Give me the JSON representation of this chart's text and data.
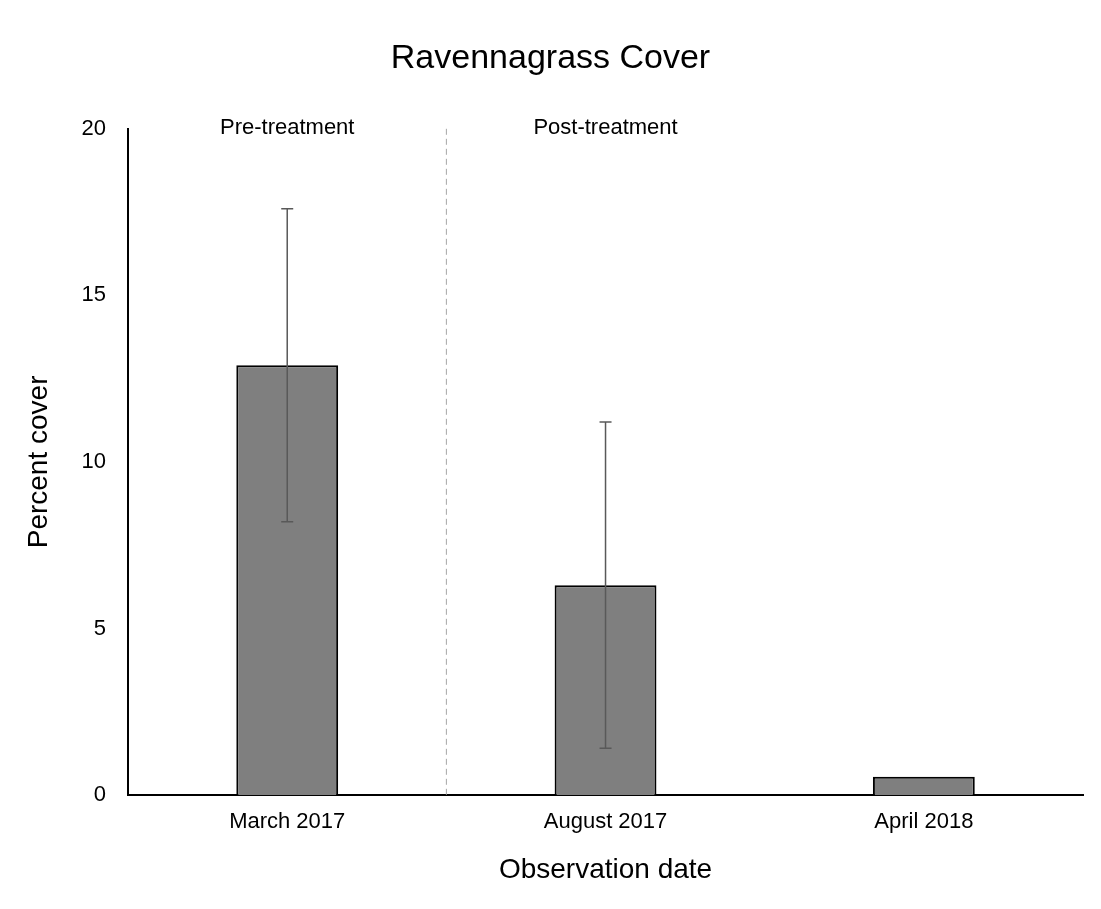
{
  "chart_data": {
    "type": "bar",
    "title": "Ravennagrass Cover",
    "xlabel": "Observation date",
    "ylabel": "Percent cover",
    "categories": [
      "March 2017",
      "August 2017",
      "April 2018"
    ],
    "values": [
      12.9,
      6.3,
      0.55
    ],
    "color": "#7f7f7f",
    "errors": [
      4.7,
      4.9,
      null
    ],
    "ylim": [
      0,
      20
    ],
    "yticks": [
      0,
      5,
      10,
      15,
      20
    ],
    "grid": false,
    "legend": false,
    "annotations": [
      "Pre-treatment",
      "Post-treatment"
    ]
  }
}
